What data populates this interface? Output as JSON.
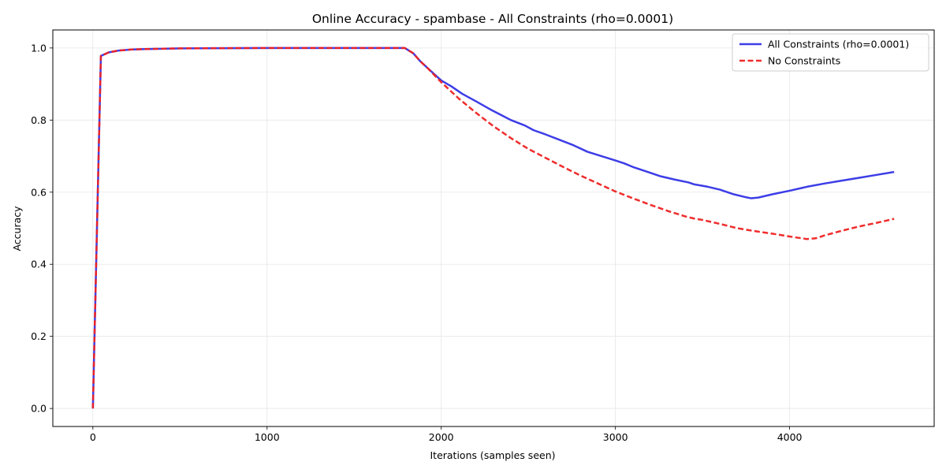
{
  "chart_data": {
    "type": "line",
    "title": "Online Accuracy - spambase - All Constraints (rho=0.0001)",
    "xlabel": "Iterations (samples seen)",
    "ylabel": "Accuracy",
    "xlim": [
      -230,
      4830
    ],
    "ylim": [
      -0.05,
      1.05
    ],
    "xticks": [
      0,
      1000,
      2000,
      3000,
      4000
    ],
    "xtick_labels": [
      "0",
      "1000",
      "2000",
      "3000",
      "4000"
    ],
    "yticks": [
      0.0,
      0.2,
      0.4,
      0.6,
      0.8,
      1.0
    ],
    "ytick_labels": [
      "0.0",
      "0.2",
      "0.4",
      "0.6",
      "0.8",
      "1.0"
    ],
    "grid": true,
    "legend_position": "top-right",
    "series": [
      {
        "name": "All Constraints (rho=0.0001)",
        "color": "#3333e6",
        "style": "solid",
        "x": [
          0,
          46,
          92,
          150,
          230,
          300,
          500,
          1000,
          1500,
          1790,
          1840,
          1880,
          1920,
          2000,
          2060,
          2120,
          2200,
          2280,
          2360,
          2400,
          2480,
          2530,
          2600,
          2680,
          2760,
          2840,
          2920,
          3000,
          3050,
          3100,
          3180,
          3260,
          3340,
          3420,
          3450,
          3530,
          3600,
          3680,
          3740,
          3780,
          3820,
          3900,
          4000,
          4100,
          4200,
          4300,
          4400,
          4500,
          4600
        ],
        "y": [
          0.0,
          0.978,
          0.988,
          0.993,
          0.996,
          0.997,
          0.999,
          1.0,
          1.0,
          1.0,
          0.985,
          0.963,
          0.945,
          0.91,
          0.893,
          0.873,
          0.852,
          0.83,
          0.81,
          0.8,
          0.785,
          0.772,
          0.76,
          0.745,
          0.73,
          0.712,
          0.7,
          0.688,
          0.68,
          0.67,
          0.657,
          0.644,
          0.635,
          0.627,
          0.622,
          0.615,
          0.607,
          0.594,
          0.587,
          0.583,
          0.585,
          0.594,
          0.604,
          0.615,
          0.624,
          0.632,
          0.64,
          0.648,
          0.656
        ]
      },
      {
        "name": "No Constraints",
        "color": "#ee2222",
        "style": "dashed",
        "x": [
          0,
          46,
          92,
          150,
          230,
          300,
          500,
          1000,
          1500,
          1790,
          1840,
          1880,
          1920,
          2000,
          2100,
          2200,
          2300,
          2400,
          2500,
          2600,
          2700,
          2800,
          2900,
          3000,
          3100,
          3200,
          3300,
          3400,
          3450,
          3500,
          3600,
          3700,
          3800,
          3900,
          4000,
          4100,
          4150,
          4200,
          4300,
          4400,
          4500,
          4600
        ],
        "y": [
          0.0,
          0.978,
          0.988,
          0.993,
          0.996,
          0.997,
          0.999,
          1.0,
          1.0,
          1.0,
          0.985,
          0.963,
          0.945,
          0.905,
          0.86,
          0.82,
          0.783,
          0.75,
          0.72,
          0.695,
          0.67,
          0.646,
          0.624,
          0.602,
          0.583,
          0.565,
          0.548,
          0.533,
          0.527,
          0.523,
          0.512,
          0.5,
          0.492,
          0.485,
          0.477,
          0.47,
          0.472,
          0.48,
          0.493,
          0.505,
          0.515,
          0.526
        ]
      }
    ]
  }
}
